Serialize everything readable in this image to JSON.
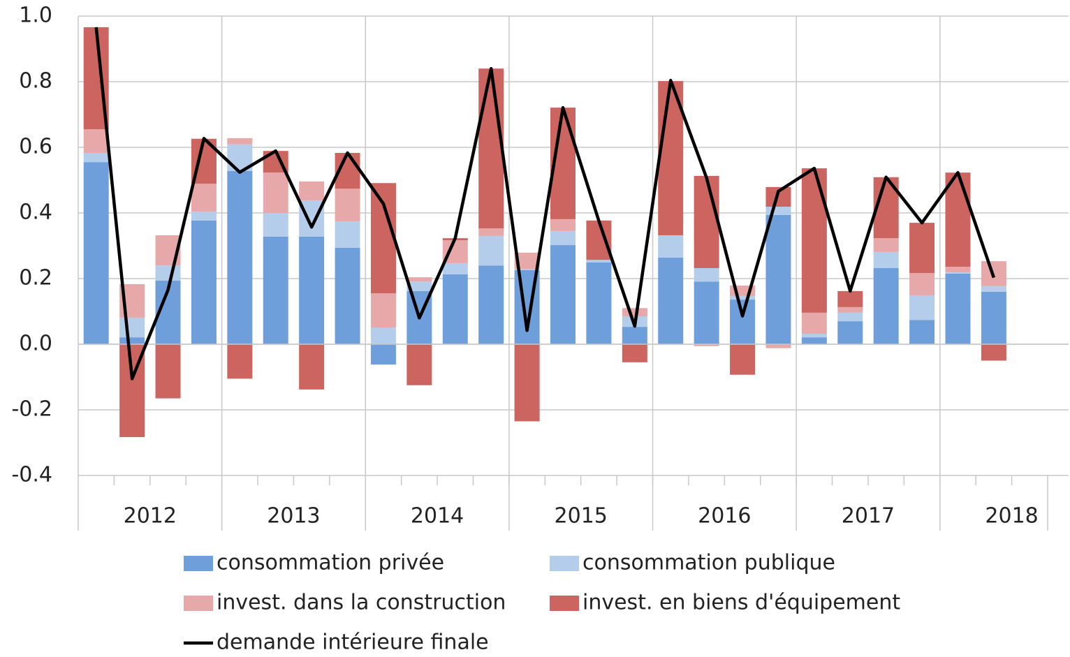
{
  "chart_data": {
    "type": "bar",
    "stacked": true,
    "categories": [
      null,
      null,
      null,
      null,
      null,
      null,
      null,
      null,
      null,
      null,
      null,
      null,
      null,
      null,
      null,
      null,
      null,
      null,
      null,
      null,
      null,
      null,
      null,
      null,
      null,
      null
    ],
    "x_groups": [
      "2012",
      "2013",
      "2014",
      "2015",
      "2016",
      "2017",
      "2018"
    ],
    "ylim": [
      -0.4,
      1.0
    ],
    "yticks": [
      {
        "value": -0.4,
        "label": "-0.4"
      },
      {
        "value": -0.2,
        "label": "-0.2"
      },
      {
        "value": 0,
        "label": "0.0"
      },
      {
        "value": 0.2,
        "label": "0.2"
      },
      {
        "value": 0.4,
        "label": "0.4"
      },
      {
        "value": 0.6,
        "label": "0.6"
      },
      {
        "value": 0.8,
        "label": "0.8"
      },
      {
        "value": 1.0,
        "label": "1.0"
      }
    ],
    "grid": true,
    "series": [
      {
        "name": "consommation privée",
        "color": "#6f9fda",
        "values": [
          0.555,
          0.021,
          0.194,
          0.377,
          0.528,
          0.328,
          0.328,
          0.294,
          -0.062,
          0.162,
          0.213,
          0.24,
          0.226,
          0.302,
          0.249,
          0.053,
          0.264,
          0.191,
          0.136,
          0.394,
          0.021,
          0.07,
          0.232,
          0.074,
          0.215,
          0.16
        ]
      },
      {
        "name": "consommation publique",
        "color": "#b4cdeb",
        "values": [
          0.028,
          0.06,
          0.046,
          0.027,
          0.081,
          0.072,
          0.11,
          0.08,
          0.051,
          0.029,
          0.034,
          0.09,
          0.003,
          0.043,
          0.008,
          0.032,
          0.068,
          0.041,
          0.011,
          0.025,
          0.011,
          0.026,
          0.049,
          0.075,
          0.004,
          0.017
        ]
      },
      {
        "name": "invest. dans la construction",
        "color": "#e6a8a8",
        "values": [
          0.072,
          0.102,
          0.092,
          0.085,
          0.019,
          0.123,
          0.058,
          0.1,
          0.104,
          0.013,
          0.07,
          0.023,
          0.05,
          0.036,
          0,
          0.025,
          0,
          -0.006,
          0.032,
          -0.012,
          0.064,
          0.017,
          0.042,
          0.068,
          0.017,
          0.076
        ]
      },
      {
        "name": "invest. en biens d'équipement",
        "color": "#cc6460",
        "values": [
          0.311,
          -0.283,
          -0.165,
          0.137,
          -0.105,
          0.066,
          -0.138,
          0.109,
          0.336,
          -0.125,
          0.006,
          0.487,
          -0.235,
          0.34,
          0.12,
          -0.055,
          0.47,
          0.281,
          -0.093,
          0.06,
          0.44,
          0.049,
          0.186,
          0.153,
          0.287,
          -0.05
        ]
      },
      {
        "name": "demande intérieure finale",
        "color": "#000000",
        "type": "line",
        "values": [
          0.966,
          -0.105,
          0.165,
          0.627,
          0.524,
          0.589,
          0.357,
          0.583,
          0.428,
          0.08,
          0.323,
          0.84,
          0.042,
          0.721,
          0.376,
          0.055,
          0.804,
          0.507,
          0.086,
          0.466,
          0.536,
          0.162,
          0.509,
          0.37,
          0.523,
          0.203
        ]
      }
    ]
  }
}
